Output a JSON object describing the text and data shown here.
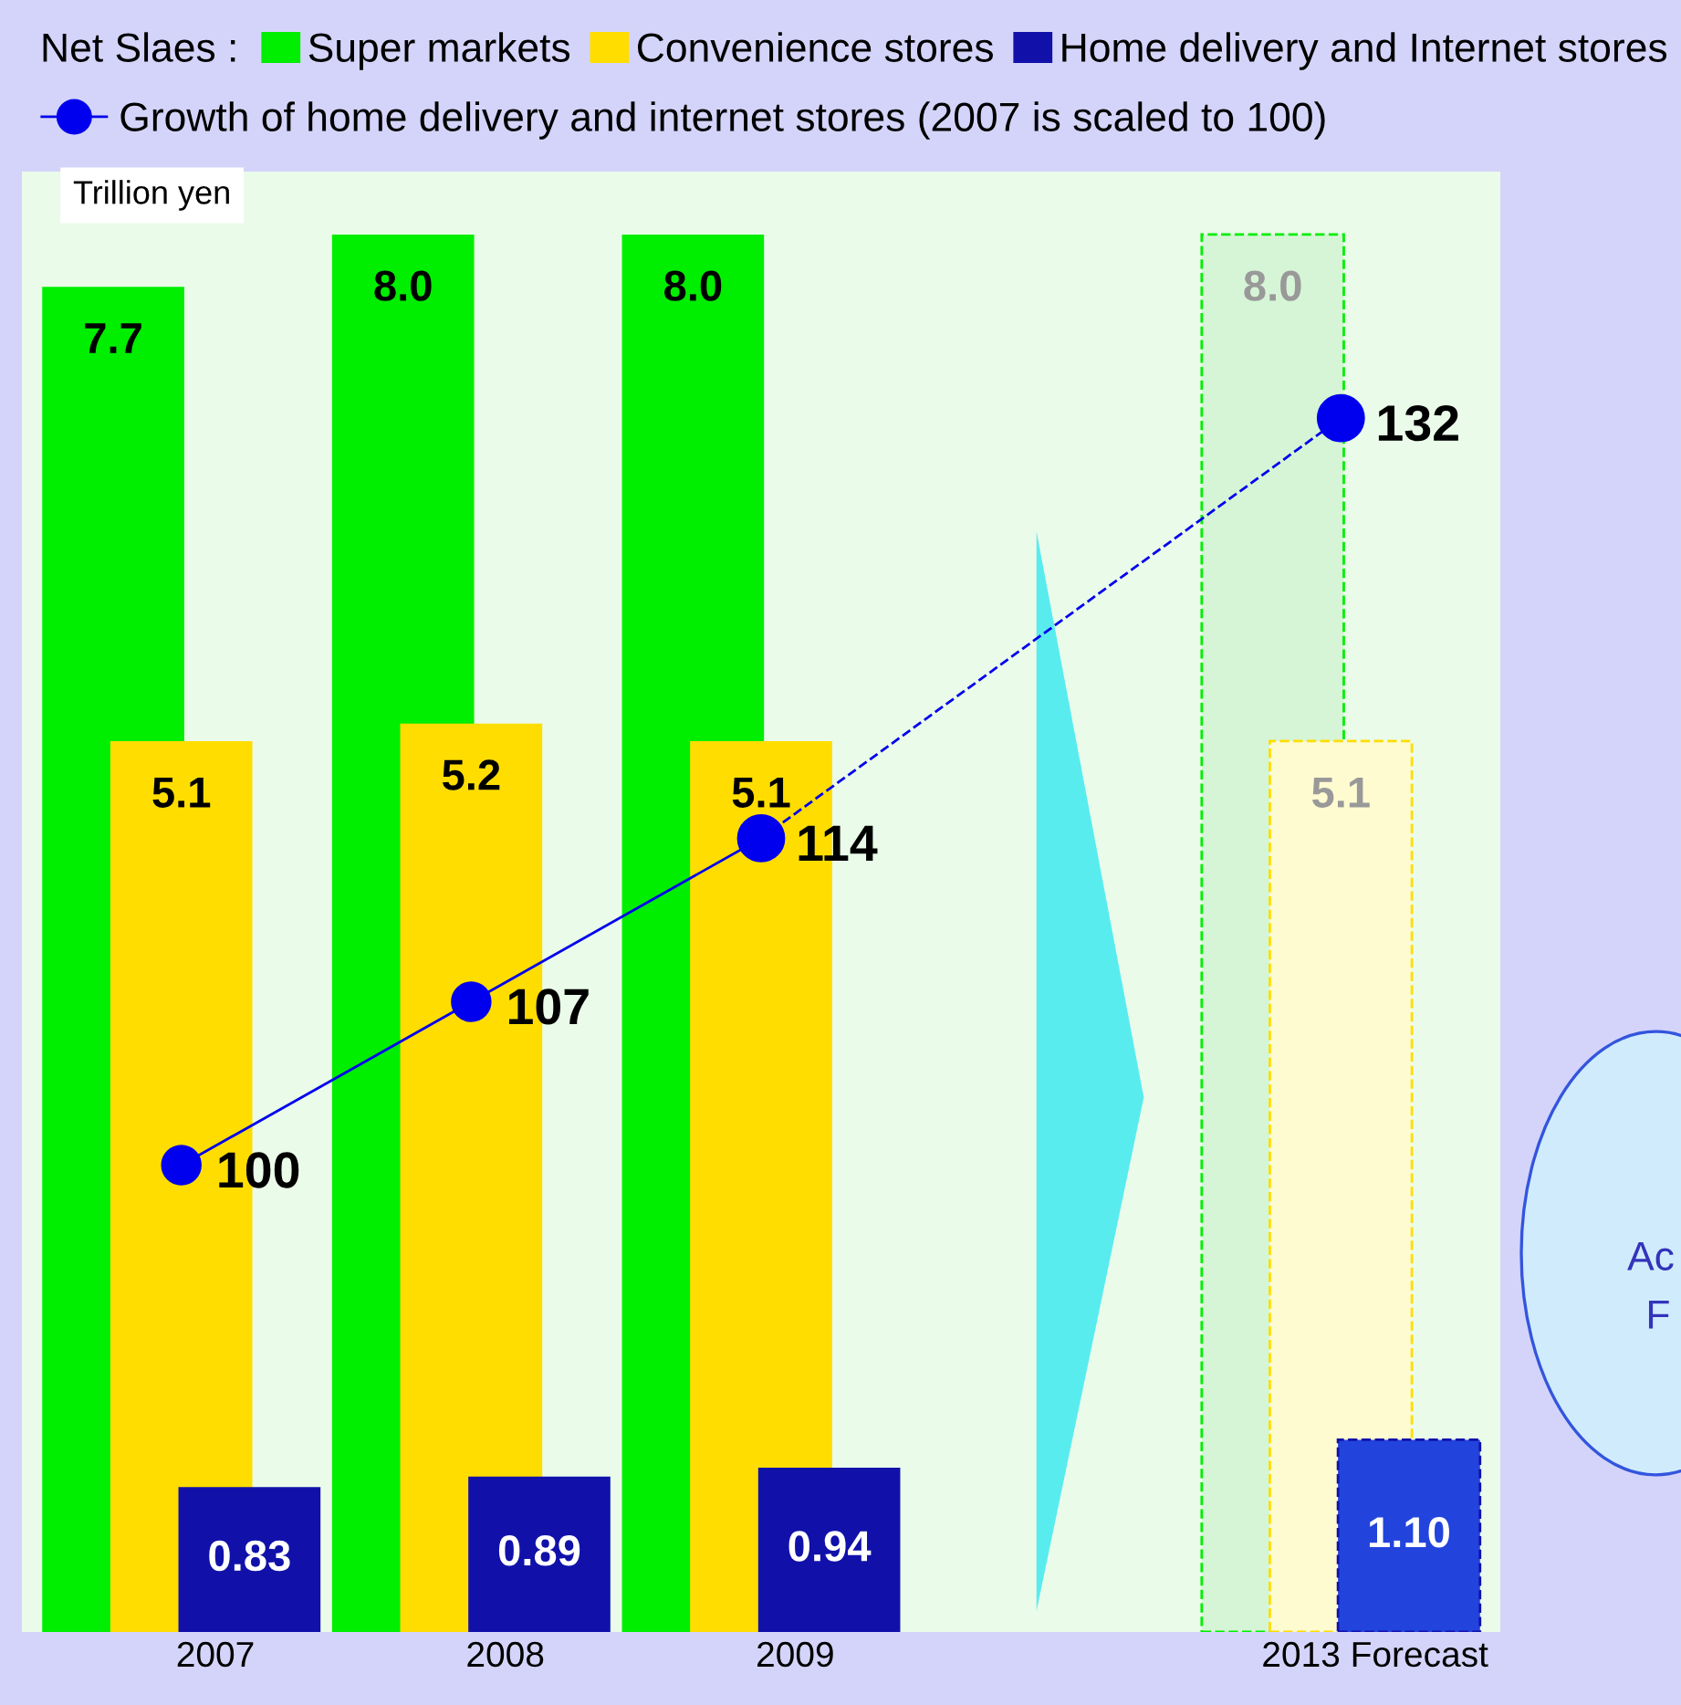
{
  "chart_data": {
    "type": "bar",
    "ylabel": "Trillion yen",
    "legend_title": "Net Slaes :",
    "categories": [
      "2007",
      "2008",
      "2009",
      null,
      "2013 Forecast"
    ],
    "series": [
      {
        "name": "Super markets",
        "color": "#00ee00",
        "colors": [
          "#00ee00",
          "#00ee00",
          "#00ee00",
          null,
          "#d6f5d6"
        ],
        "values": [
          7.7,
          8.0,
          8.0,
          null,
          8.0
        ],
        "value_labels": [
          "7.7",
          "8.0",
          "8.0",
          null,
          "8.0"
        ]
      },
      {
        "name": "Convenience stores",
        "color": "#ffdd00",
        "colors": [
          "#ffdd00",
          "#ffdd00",
          "#ffdd00",
          null,
          "#fffbd0"
        ],
        "values": [
          5.1,
          5.2,
          5.1,
          null,
          5.1
        ],
        "value_labels": [
          "5.1",
          "5.2",
          "5.1",
          null,
          "5.1"
        ]
      },
      {
        "name": "Home delivery and Internet stores",
        "color": "#1111aa",
        "colors": [
          "#1111aa",
          "#1111aa",
          "#1111aa",
          null,
          "#2244dd"
        ],
        "values": [
          0.83,
          0.89,
          0.94,
          null,
          1.1
        ],
        "value_labels": [
          "0.83",
          "0.89",
          "0.94",
          null,
          "1.10"
        ]
      },
      {
        "name": "Growth of home delivery and internet stores (2007 is scaled to 100)",
        "type": "line",
        "axis": "y2",
        "color": "#0000ee",
        "marker": "circle",
        "line_style": "solid",
        "values": [
          100,
          107,
          114,
          null,
          null
        ],
        "value_labels": [
          "100",
          "107",
          "114",
          null,
          null
        ]
      },
      {
        "type": "line",
        "axis": "y2",
        "color": "#0000ee",
        "marker": "circle",
        "line_style": "dashed",
        "values": [
          null,
          null,
          114,
          null,
          132
        ],
        "value_labels": [
          null,
          null,
          null,
          null,
          "132"
        ]
      }
    ],
    "legend": "top",
    "grid": false,
    "annotations": [
      "Ac",
      "F"
    ]
  }
}
